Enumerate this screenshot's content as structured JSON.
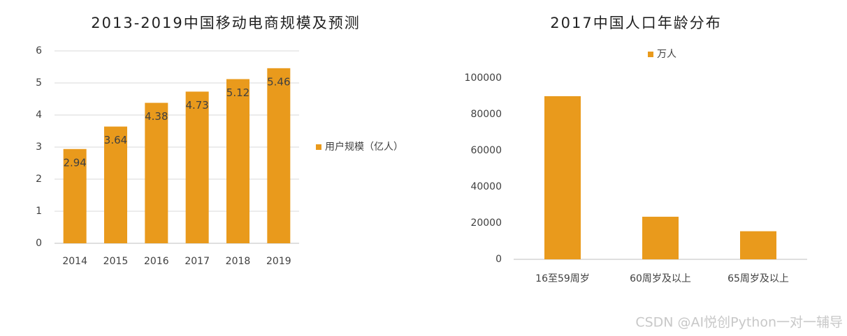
{
  "chart_data": [
    {
      "type": "bar",
      "title": "2013-2019中国移动电商规模及预测",
      "categories": [
        "2014",
        "2015",
        "2016",
        "2017",
        "2018",
        "2019"
      ],
      "series": [
        {
          "name": "用户规模（亿人）",
          "color": "#e99a1c",
          "values": [
            2.94,
            3.64,
            4.38,
            4.73,
            5.12,
            5.46
          ]
        }
      ],
      "ylim": [
        0,
        6
      ],
      "yticks": [
        0,
        1,
        2,
        3,
        4,
        5,
        6
      ],
      "grid": true,
      "legend": "right",
      "data_labels": true
    },
    {
      "type": "bar",
      "title": "2017中国人口年龄分布",
      "categories": [
        "16至59周岁",
        "60周岁及以上",
        "65周岁及以上"
      ],
      "series": [
        {
          "name": "万人",
          "color": "#e99a1c",
          "values": [
            90000,
            23500,
            15500
          ]
        }
      ],
      "ylim": [
        0,
        100000
      ],
      "yticks": [
        0,
        20000,
        40000,
        60000,
        80000,
        100000
      ],
      "grid": false,
      "legend": "top",
      "data_labels": false
    }
  ],
  "watermark": "CSDN @AI悦创Python一对一辅导"
}
